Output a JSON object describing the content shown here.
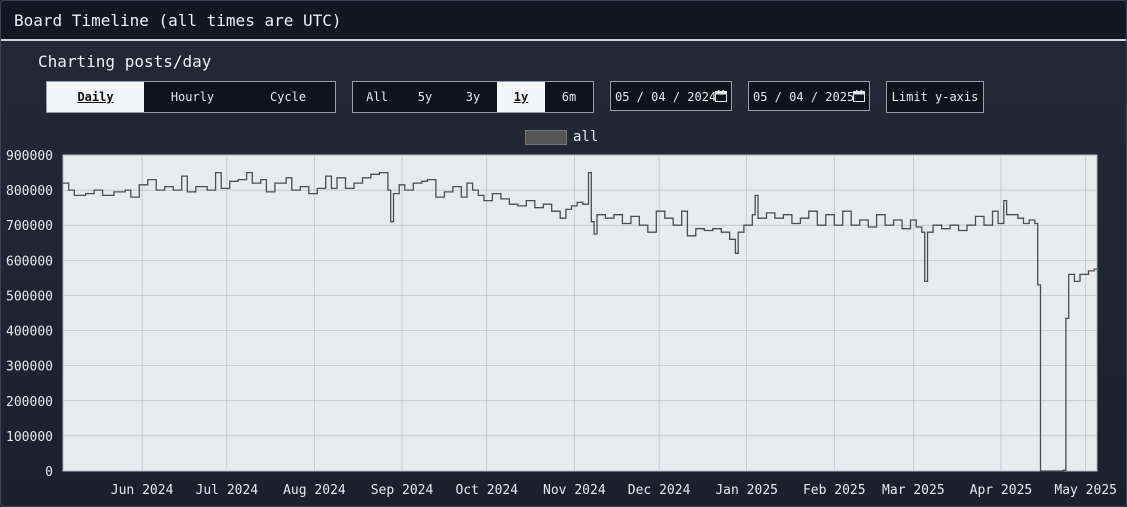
{
  "header": {
    "title": "Board Timeline (all times are UTC)"
  },
  "subtitle": "Charting posts/day",
  "granularity": {
    "options": [
      "Daily",
      "Hourly",
      "Cycle"
    ],
    "active": "Daily"
  },
  "range": {
    "options": [
      "All",
      "5y",
      "3y",
      "1y",
      "6m"
    ],
    "active": "1y"
  },
  "date_start": {
    "month": "05",
    "day": "04",
    "year": "2024"
  },
  "date_end": {
    "month": "05",
    "day": "04",
    "year": "2025"
  },
  "limit_button": "Limit y-axis",
  "colors": {
    "line": "#4d4d4d",
    "plot_bg": "#e8ebee",
    "grid": "#b9bec5"
  },
  "chart_data": {
    "type": "line",
    "title": "",
    "legend": {
      "position": "top",
      "entries": [
        "all"
      ]
    },
    "ylim": [
      0,
      900000
    ],
    "yticks": [
      "0",
      "100000",
      "200000",
      "300000",
      "400000",
      "500000",
      "600000",
      "700000",
      "800000",
      "900000"
    ],
    "xlim": [
      "2024-05-04",
      "2025-05-05"
    ],
    "xticks": [
      {
        "date": "2024-06-01",
        "label": "Jun 2024"
      },
      {
        "date": "2024-07-01",
        "label": "Jul 2024"
      },
      {
        "date": "2024-08-01",
        "label": "Aug 2024"
      },
      {
        "date": "2024-09-01",
        "label": "Sep 2024"
      },
      {
        "date": "2024-10-01",
        "label": "Oct 2024"
      },
      {
        "date": "2024-11-01",
        "label": "Nov 2024"
      },
      {
        "date": "2024-12-01",
        "label": "Dec 2024"
      },
      {
        "date": "2025-01-01",
        "label": "Jan 2025"
      },
      {
        "date": "2025-02-01",
        "label": "Feb 2025"
      },
      {
        "date": "2025-03-01",
        "label": "Mar 2025"
      },
      {
        "date": "2025-04-01",
        "label": "Apr 2025"
      },
      {
        "date": "2025-05-01",
        "label": "May 2025"
      }
    ],
    "grid": true,
    "series": [
      {
        "name": "all",
        "step": true,
        "points": [
          [
            "2024-05-04",
            820000
          ],
          [
            "2024-05-06",
            800000
          ],
          [
            "2024-05-08",
            785000
          ],
          [
            "2024-05-12",
            790000
          ],
          [
            "2024-05-15",
            800000
          ],
          [
            "2024-05-18",
            785000
          ],
          [
            "2024-05-22",
            795000
          ],
          [
            "2024-05-26",
            800000
          ],
          [
            "2024-05-28",
            780000
          ],
          [
            "2024-05-31",
            815000
          ],
          [
            "2024-06-03",
            830000
          ],
          [
            "2024-06-06",
            800000
          ],
          [
            "2024-06-09",
            810000
          ],
          [
            "2024-06-12",
            800000
          ],
          [
            "2024-06-15",
            840000
          ],
          [
            "2024-06-17",
            795000
          ],
          [
            "2024-06-20",
            810000
          ],
          [
            "2024-06-24",
            800000
          ],
          [
            "2024-06-27",
            850000
          ],
          [
            "2024-06-29",
            805000
          ],
          [
            "2024-07-02",
            825000
          ],
          [
            "2024-07-05",
            830000
          ],
          [
            "2024-07-08",
            850000
          ],
          [
            "2024-07-10",
            820000
          ],
          [
            "2024-07-13",
            830000
          ],
          [
            "2024-07-15",
            795000
          ],
          [
            "2024-07-18",
            820000
          ],
          [
            "2024-07-22",
            835000
          ],
          [
            "2024-07-24",
            800000
          ],
          [
            "2024-07-27",
            810000
          ],
          [
            "2024-07-30",
            790000
          ],
          [
            "2024-08-02",
            805000
          ],
          [
            "2024-08-05",
            840000
          ],
          [
            "2024-08-07",
            805000
          ],
          [
            "2024-08-09",
            835000
          ],
          [
            "2024-08-12",
            805000
          ],
          [
            "2024-08-15",
            820000
          ],
          [
            "2024-08-18",
            835000
          ],
          [
            "2024-08-21",
            845000
          ],
          [
            "2024-08-24",
            850000
          ],
          [
            "2024-08-27",
            800000
          ],
          [
            "2024-08-28",
            710000
          ],
          [
            "2024-08-29",
            790000
          ],
          [
            "2024-08-31",
            815000
          ],
          [
            "2024-09-02",
            800000
          ],
          [
            "2024-09-05",
            820000
          ],
          [
            "2024-09-08",
            825000
          ],
          [
            "2024-09-10",
            830000
          ],
          [
            "2024-09-13",
            780000
          ],
          [
            "2024-09-16",
            795000
          ],
          [
            "2024-09-19",
            810000
          ],
          [
            "2024-09-22",
            780000
          ],
          [
            "2024-09-24",
            820000
          ],
          [
            "2024-09-26",
            800000
          ],
          [
            "2024-09-28",
            785000
          ],
          [
            "2024-09-30",
            770000
          ],
          [
            "2024-10-03",
            790000
          ],
          [
            "2024-10-06",
            775000
          ],
          [
            "2024-10-09",
            760000
          ],
          [
            "2024-10-12",
            755000
          ],
          [
            "2024-10-15",
            770000
          ],
          [
            "2024-10-18",
            750000
          ],
          [
            "2024-10-21",
            760000
          ],
          [
            "2024-10-24",
            740000
          ],
          [
            "2024-10-27",
            720000
          ],
          [
            "2024-10-29",
            745000
          ],
          [
            "2024-10-31",
            755000
          ],
          [
            "2024-11-02",
            765000
          ],
          [
            "2024-11-04",
            760000
          ],
          [
            "2024-11-06",
            850000
          ],
          [
            "2024-11-07",
            710000
          ],
          [
            "2024-11-08",
            675000
          ],
          [
            "2024-11-09",
            730000
          ],
          [
            "2024-11-12",
            720000
          ],
          [
            "2024-11-15",
            730000
          ],
          [
            "2024-11-18",
            705000
          ],
          [
            "2024-11-21",
            725000
          ],
          [
            "2024-11-24",
            700000
          ],
          [
            "2024-11-27",
            680000
          ],
          [
            "2024-11-30",
            740000
          ],
          [
            "2024-12-03",
            720000
          ],
          [
            "2024-12-06",
            700000
          ],
          [
            "2024-12-09",
            740000
          ],
          [
            "2024-12-11",
            670000
          ],
          [
            "2024-12-14",
            690000
          ],
          [
            "2024-12-17",
            685000
          ],
          [
            "2024-12-20",
            690000
          ],
          [
            "2024-12-23",
            680000
          ],
          [
            "2024-12-26",
            660000
          ],
          [
            "2024-12-28",
            620000
          ],
          [
            "2024-12-29",
            680000
          ],
          [
            "2024-12-31",
            700000
          ],
          [
            "2025-01-03",
            730000
          ],
          [
            "2025-01-04",
            785000
          ],
          [
            "2025-01-05",
            720000
          ],
          [
            "2025-01-08",
            735000
          ],
          [
            "2025-01-11",
            720000
          ],
          [
            "2025-01-14",
            730000
          ],
          [
            "2025-01-17",
            705000
          ],
          [
            "2025-01-20",
            720000
          ],
          [
            "2025-01-23",
            740000
          ],
          [
            "2025-01-26",
            700000
          ],
          [
            "2025-01-29",
            730000
          ],
          [
            "2025-02-01",
            700000
          ],
          [
            "2025-02-04",
            740000
          ],
          [
            "2025-02-07",
            700000
          ],
          [
            "2025-02-10",
            715000
          ],
          [
            "2025-02-13",
            695000
          ],
          [
            "2025-02-16",
            730000
          ],
          [
            "2025-02-19",
            700000
          ],
          [
            "2025-02-22",
            715000
          ],
          [
            "2025-02-25",
            690000
          ],
          [
            "2025-02-28",
            715000
          ],
          [
            "2025-03-02",
            695000
          ],
          [
            "2025-03-04",
            680000
          ],
          [
            "2025-03-05",
            540000
          ],
          [
            "2025-03-06",
            680000
          ],
          [
            "2025-03-08",
            700000
          ],
          [
            "2025-03-11",
            690000
          ],
          [
            "2025-03-14",
            700000
          ],
          [
            "2025-03-17",
            685000
          ],
          [
            "2025-03-20",
            700000
          ],
          [
            "2025-03-23",
            725000
          ],
          [
            "2025-03-26",
            700000
          ],
          [
            "2025-03-29",
            740000
          ],
          [
            "2025-03-31",
            705000
          ],
          [
            "2025-04-02",
            770000
          ],
          [
            "2025-04-03",
            730000
          ],
          [
            "2025-04-07",
            720000
          ],
          [
            "2025-04-09",
            705000
          ],
          [
            "2025-04-11",
            715000
          ],
          [
            "2025-04-13",
            705000
          ],
          [
            "2025-04-14",
            530000
          ],
          [
            "2025-04-15",
            0
          ],
          [
            "2025-04-23",
            2000
          ],
          [
            "2025-04-24",
            435000
          ],
          [
            "2025-04-25",
            560000
          ],
          [
            "2025-04-27",
            540000
          ],
          [
            "2025-04-29",
            560000
          ],
          [
            "2025-05-02",
            570000
          ],
          [
            "2025-05-04",
            575000
          ]
        ]
      }
    ]
  }
}
